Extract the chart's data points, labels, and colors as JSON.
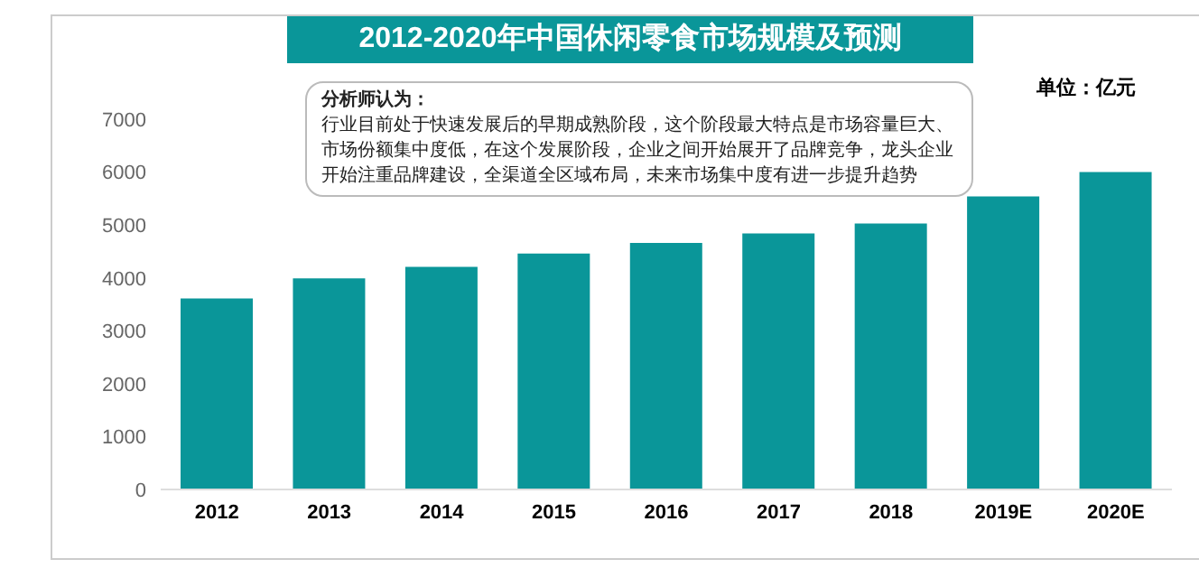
{
  "chart_data": {
    "type": "bar",
    "title": "2012-2020年中国休闲零食市场规模及预测",
    "categories": [
      "2012",
      "2013",
      "2014",
      "2015",
      "2016",
      "2017",
      "2018",
      "2019E",
      "2020E"
    ],
    "values": [
      3610,
      3990,
      4210,
      4460,
      4660,
      4840,
      5030,
      5540,
      6000
    ],
    "color": "#0a9699",
    "ylim": [
      0,
      7000
    ],
    "yticks": [
      0,
      1000,
      2000,
      3000,
      4000,
      5000,
      6000,
      7000
    ],
    "grid": false,
    "legend": false,
    "annotations": [
      "单位：亿元",
      "分析师认为：",
      "行业目前处于快速发展后的早期成熟阶段，这个阶段最大特点是市场容量巨大、市场份额集中度低，在这个发展阶段，企业之间开始展开了品牌竞争，龙头企业开始注重品牌建设，全渠道全区域布局，未来市场集中度有进一步提升趋势"
    ]
  }
}
